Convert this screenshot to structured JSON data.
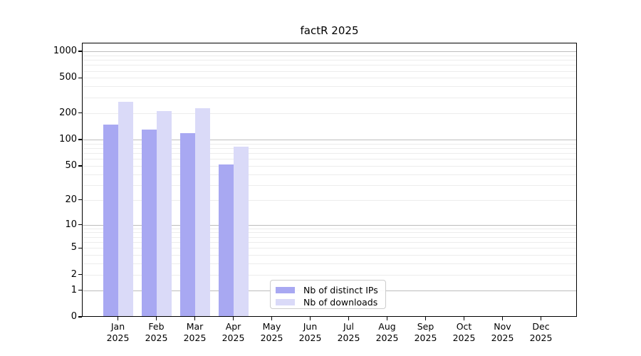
{
  "chart_data": {
    "type": "bar",
    "title": "factR 2025",
    "categories": [
      "Jan",
      "Feb",
      "Mar",
      "Apr",
      "May",
      "Jun",
      "Jul",
      "Aug",
      "Sep",
      "Oct",
      "Nov",
      "Dec"
    ],
    "x_tick_second_line": "2025",
    "series": [
      {
        "name": "Nb of distinct IPs",
        "color": "#a8a8f2",
        "values": [
          147,
          129,
          119,
          52,
          0,
          0,
          0,
          0,
          0,
          0,
          0,
          0
        ]
      },
      {
        "name": "Nb of downloads",
        "color": "#dadaf8",
        "values": [
          270,
          210,
          225,
          82,
          0,
          0,
          0,
          0,
          0,
          0,
          0,
          0
        ]
      }
    ],
    "y_ticks": [
      0,
      1,
      2,
      5,
      10,
      20,
      50,
      100,
      200,
      500,
      1000
    ],
    "y_scale": "log10(1+x)",
    "ylim": [
      0,
      1260
    ],
    "grid": "horizontal",
    "major_gridline_values": [
      1,
      10,
      100,
      1000
    ],
    "legend_position": "lower-center",
    "colors": {
      "background": "#ffffff",
      "major_grid": "#bdbdbd",
      "minor_grid": "#ececec",
      "spine": "#000000",
      "text": "#000000"
    }
  }
}
